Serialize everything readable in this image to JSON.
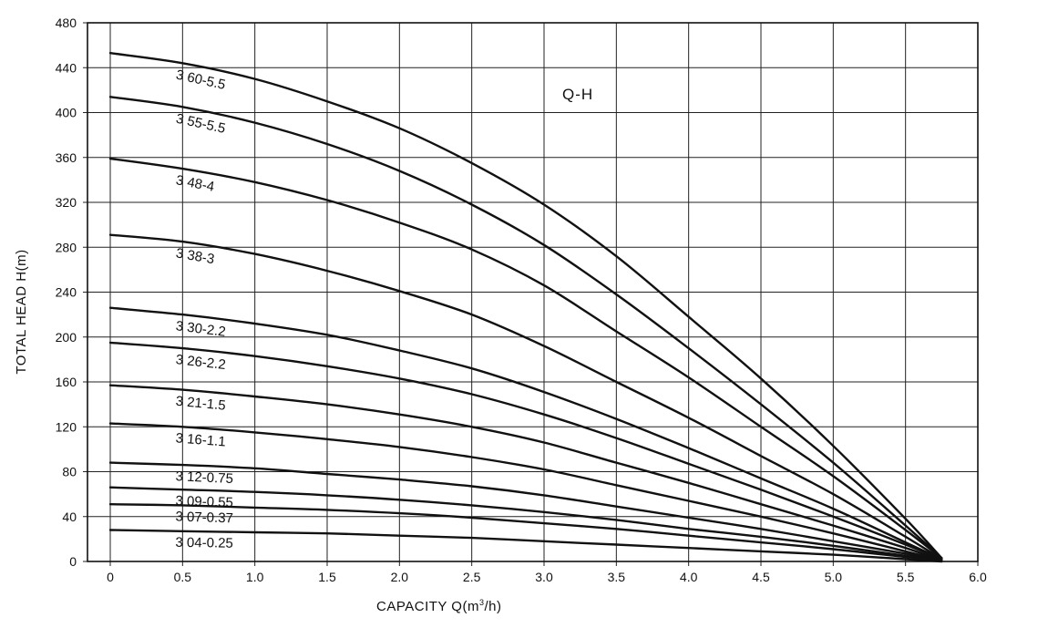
{
  "chart_data": {
    "type": "line",
    "title": "Q-H",
    "xlabel": "CAPACITY  Q(m",
    "xlabel_sup": "3",
    "xlabel_tail": "/h)",
    "ylabel": "TOTAL HEAD  H(m)",
    "xlim": [
      0,
      6
    ],
    "ylim": [
      0,
      480
    ],
    "grid": true,
    "x_ticks": [
      "0",
      "0.5",
      "1.0",
      "1.5",
      "2.0",
      "2.5",
      "3.0",
      "3.5",
      "4.0",
      "4.5",
      "5.0",
      "5.5",
      "6.0"
    ],
    "y_ticks": [
      "0",
      "40",
      "80",
      "120",
      "160",
      "200",
      "240",
      "280",
      "320",
      "360",
      "400",
      "440",
      "480"
    ],
    "x": [
      0,
      0.5,
      1.0,
      1.5,
      2.0,
      2.5,
      3.0,
      3.5,
      4.0,
      4.5,
      5.0,
      5.5,
      5.75
    ],
    "series": [
      {
        "name": "3 60-5.5",
        "values": [
          453,
          444,
          430,
          410,
          386,
          355,
          318,
          272,
          218,
          163,
          103,
          38,
          3
        ]
      },
      {
        "name": "3 55-5.5",
        "values": [
          414,
          405,
          391,
          372,
          348,
          318,
          282,
          238,
          190,
          140,
          88,
          32,
          3
        ]
      },
      {
        "name": "3 48-4",
        "values": [
          359,
          350,
          338,
          322,
          302,
          278,
          246,
          205,
          164,
          120,
          76,
          28,
          3
        ]
      },
      {
        "name": "3 38-3",
        "values": [
          291,
          285,
          274,
          259,
          241,
          220,
          192,
          160,
          128,
          94,
          60,
          22,
          2
        ]
      },
      {
        "name": "3 30-2.2",
        "values": [
          226,
          220,
          212,
          202,
          188,
          172,
          151,
          127,
          101,
          74,
          47,
          17,
          2
        ]
      },
      {
        "name": "3 26-2.2",
        "values": [
          195,
          190,
          183,
          174,
          163,
          149,
          131,
          110,
          87,
          64,
          40,
          15,
          2
        ]
      },
      {
        "name": "3 21-1.5",
        "values": [
          157,
          153,
          147,
          140,
          131,
          120,
          106,
          88,
          70,
          51,
          32,
          12,
          1
        ]
      },
      {
        "name": "3 16-1.1",
        "values": [
          123,
          120,
          115,
          109,
          102,
          93,
          82,
          68,
          54,
          40,
          25,
          9,
          1
        ]
      },
      {
        "name": "3 12-0.75",
        "values": [
          88,
          86,
          83,
          78,
          73,
          67,
          59,
          49,
          39,
          29,
          18,
          7,
          1
        ]
      },
      {
        "name": "3 09-0.55",
        "values": [
          66,
          64,
          62,
          59,
          55,
          50,
          44,
          37,
          29,
          22,
          14,
          5,
          1
        ]
      },
      {
        "name": "3 07-0.37",
        "values": [
          51,
          50,
          48,
          46,
          43,
          39,
          34,
          29,
          23,
          17,
          11,
          4,
          1
        ]
      },
      {
        "name": "3 04-0.25",
        "values": [
          28,
          27,
          26,
          25,
          23,
          21,
          18,
          15,
          12,
          9,
          6,
          2,
          0
        ]
      }
    ]
  }
}
